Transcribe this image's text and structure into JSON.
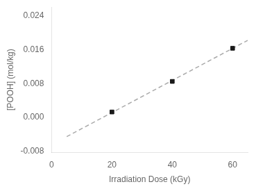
{
  "chart_data": {
    "type": "scatter",
    "xlabel": "Irradiation Dose (kGy)",
    "ylabel": "[POOH] (mol/kg)",
    "series": [
      {
        "type": "line",
        "x": [
          5,
          65
        ],
        "values": [
          -0.00451,
          0.01817
        ],
        "color": "#aaaaaa",
        "line_style": "dashed"
      },
      {
        "type": "scatter",
        "x": [
          20,
          40,
          60
        ],
        "values": [
          0.0013,
          0.0085,
          0.0163
        ],
        "color": "#1a1a1a",
        "marker": "square"
      }
    ],
    "xlim": [
      0,
      65
    ],
    "xticks": [
      0,
      20,
      40,
      60
    ],
    "ylim": [
      -0.0082,
      0.026
    ],
    "yticks": [
      -0.008,
      {
        "value": 0,
        "label": "0.000"
      },
      0.008,
      0.016,
      0.024
    ],
    "grid": false
  }
}
